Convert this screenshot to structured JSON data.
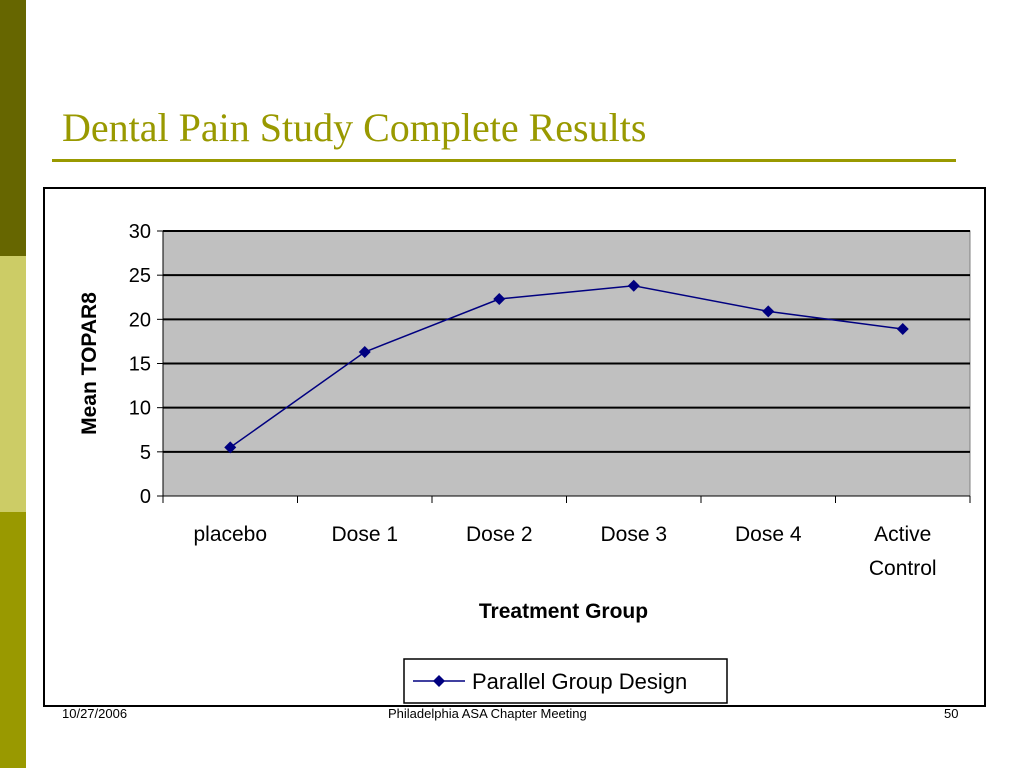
{
  "slide": {
    "title": "Dental Pain Study Complete Results"
  },
  "footer": {
    "date": "10/27/2006",
    "meeting": "Philadelphia  ASA Chapter Meeting",
    "page": "50"
  },
  "colors": {
    "accent": "#999900",
    "bar_dark": "#666600",
    "bar_light": "#cccc66",
    "plot_bg": "#c0c0c0",
    "series": "#000080"
  },
  "chart_data": {
    "type": "line",
    "title": "",
    "xlabel": "Treatment Group",
    "ylabel": "Mean TOPAR8",
    "categories": [
      "placebo",
      "Dose 1",
      "Dose 2",
      "Dose 3",
      "Dose 4",
      "Active Control"
    ],
    "series": [
      {
        "name": "Parallel Group Design",
        "values": [
          5.5,
          16.3,
          22.3,
          23.8,
          20.9,
          18.9
        ],
        "marker": "diamond"
      }
    ],
    "ylim": [
      0,
      30
    ],
    "yticks": [
      0,
      5,
      10,
      15,
      20,
      25,
      30
    ],
    "grid": true,
    "legend": "bottom-center"
  }
}
